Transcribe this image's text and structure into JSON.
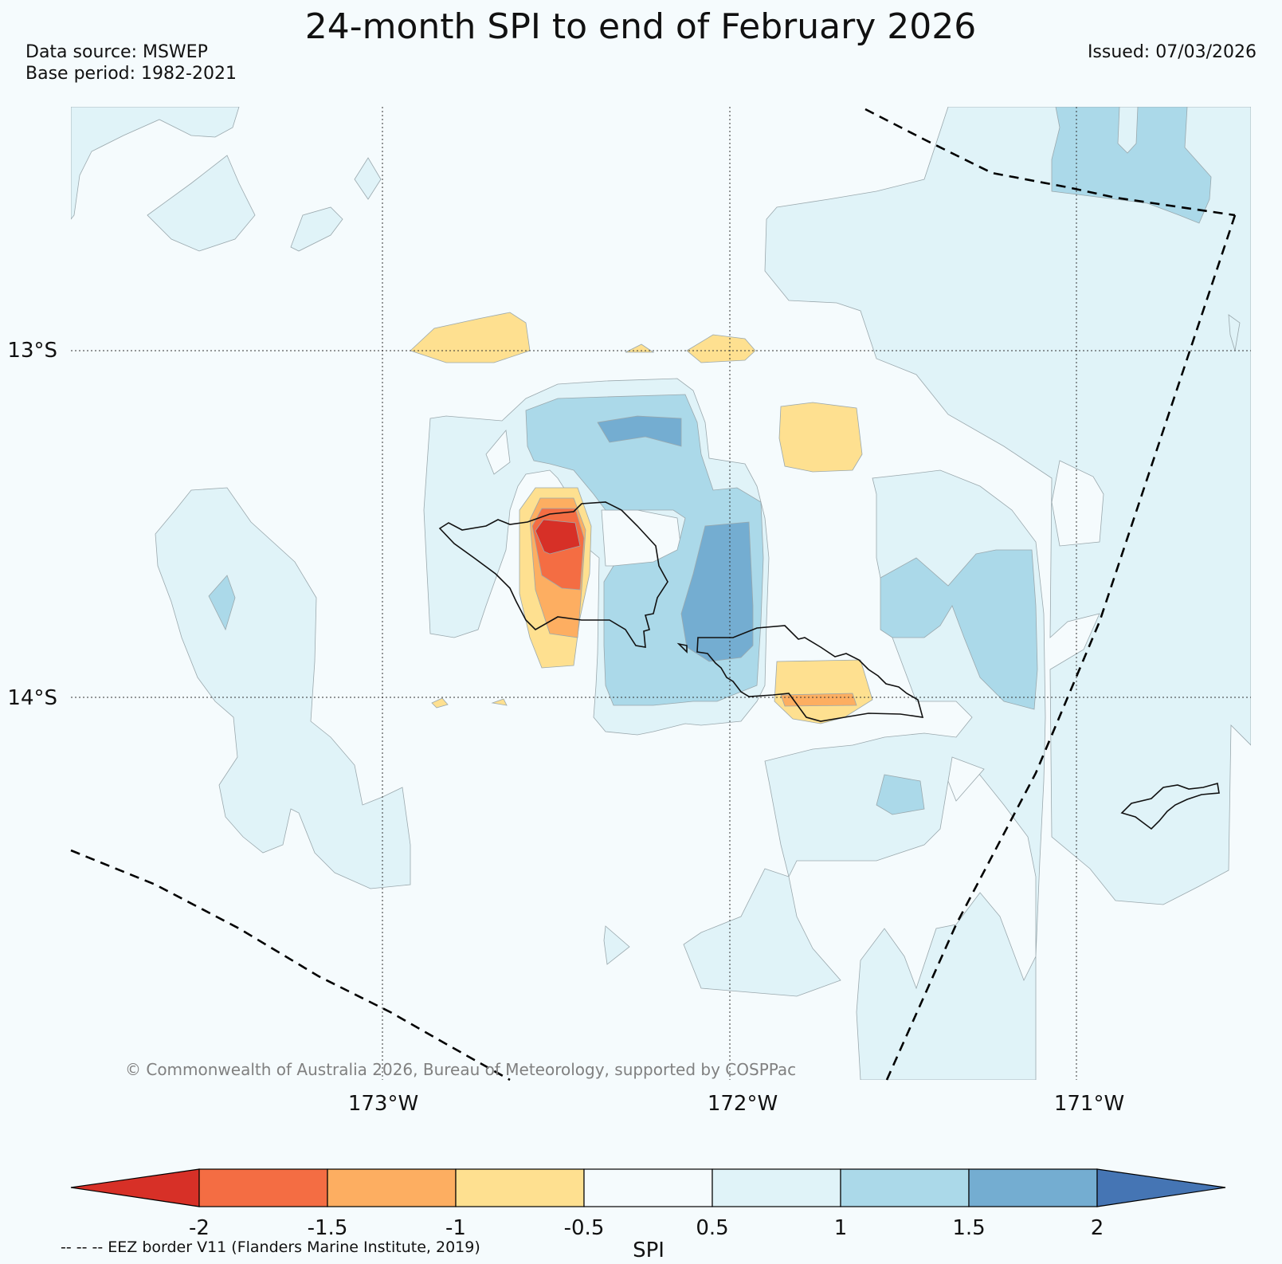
{
  "header": {
    "title": "24-month SPI to end of February 2026",
    "source_line": "Data source: MSWEP",
    "base_line": "Base period: 1982-2021",
    "issued_line": "Issued: 07/03/2026"
  },
  "map": {
    "lat_labels": [
      "13°S",
      "14°S"
    ],
    "lon_labels": [
      "173°W",
      "172°W",
      "171°W"
    ],
    "copyright": "© Commonwealth of Australia 2026, Bureau of Meteorology, supported by COSPPac"
  },
  "colorbar": {
    "label": "SPI",
    "ticks": [
      "-2",
      "-1.5",
      "-1",
      "-0.5",
      "0.5",
      "1",
      "1.5",
      "2"
    ],
    "colors": {
      "lt_-2": "#d73027",
      "-2_-1.5": "#f46d43",
      "-1.5_-1": "#fdae61",
      "-1_-0.5": "#fee090",
      "-0.5_0.5": "#f5fbfd",
      "0.5_1": "#e0f3f8",
      "1_1.5": "#abd9e9",
      "1.5_2": "#74add1",
      "gt_2": "#4575b4"
    }
  },
  "footer": {
    "eez_note": "-- -- -- EEZ border V11 (Flanders Marine Institute, 2019)"
  }
}
